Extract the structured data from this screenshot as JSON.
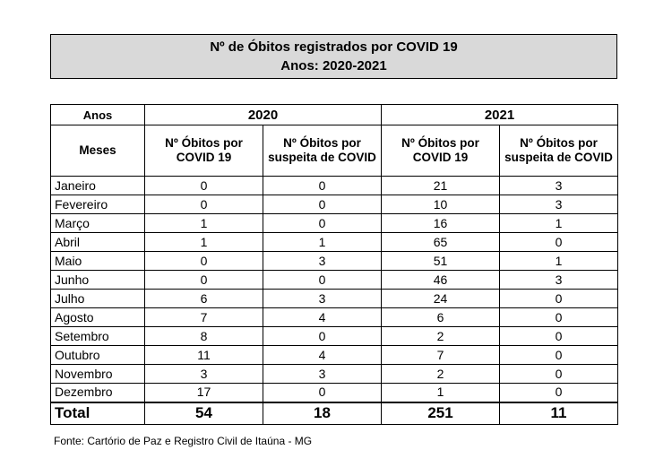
{
  "title": {
    "line1": "Nº de Óbitos registrados por COVID 19",
    "line2": "Anos: 2020-2021"
  },
  "table": {
    "anos_label": "Anos",
    "meses_label": "Meses",
    "years": [
      "2020",
      "2021"
    ],
    "col_headers": {
      "covid": "Nº Óbitos por COVID 19",
      "suspeita": "Nº Óbitos por suspeita de COVID"
    },
    "rows": [
      {
        "month": "Janeiro",
        "y2020_covid": "0",
        "y2020_susp": "0",
        "y2021_covid": "21",
        "y2021_susp": "3"
      },
      {
        "month": "Fevereiro",
        "y2020_covid": "0",
        "y2020_susp": "0",
        "y2021_covid": "10",
        "y2021_susp": "3"
      },
      {
        "month": "Março",
        "y2020_covid": "1",
        "y2020_susp": "0",
        "y2021_covid": "16",
        "y2021_susp": "1"
      },
      {
        "month": "Abril",
        "y2020_covid": "1",
        "y2020_susp": "1",
        "y2021_covid": "65",
        "y2021_susp": "0"
      },
      {
        "month": "Maio",
        "y2020_covid": "0",
        "y2020_susp": "3",
        "y2021_covid": "51",
        "y2021_susp": "1"
      },
      {
        "month": "Junho",
        "y2020_covid": "0",
        "y2020_susp": "0",
        "y2021_covid": "46",
        "y2021_susp": "3"
      },
      {
        "month": "Julho",
        "y2020_covid": "6",
        "y2020_susp": "3",
        "y2021_covid": "24",
        "y2021_susp": "0"
      },
      {
        "month": "Agosto",
        "y2020_covid": "7",
        "y2020_susp": "4",
        "y2021_covid": "6",
        "y2021_susp": "0"
      },
      {
        "month": "Setembro",
        "y2020_covid": "8",
        "y2020_susp": "0",
        "y2021_covid": "2",
        "y2021_susp": "0"
      },
      {
        "month": "Outubro",
        "y2020_covid": "11",
        "y2020_susp": "4",
        "y2021_covid": "7",
        "y2021_susp": "0"
      },
      {
        "month": "Novembro",
        "y2020_covid": "3",
        "y2020_susp": "3",
        "y2021_covid": "2",
        "y2021_susp": "0"
      },
      {
        "month": "Dezembro",
        "y2020_covid": "17",
        "y2020_susp": "0",
        "y2021_covid": "1",
        "y2021_susp": "0"
      }
    ],
    "total": {
      "label": "Total",
      "y2020_covid": "54",
      "y2020_susp": "18",
      "y2021_covid": "251",
      "y2021_susp": "11"
    }
  },
  "source": "Fonte: Cartório de Paz e Registro Civil de Itaúna - MG"
}
